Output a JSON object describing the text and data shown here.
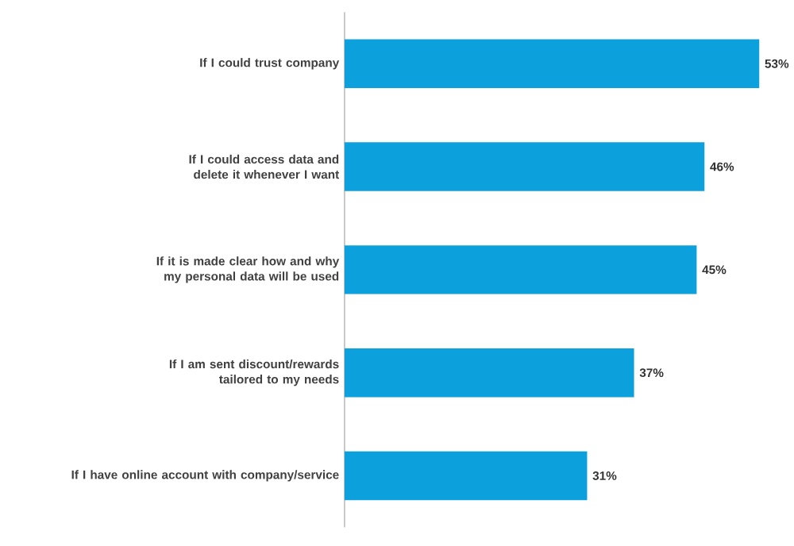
{
  "chart_data": {
    "type": "bar",
    "orientation": "horizontal",
    "categories": [
      "If I could trust company",
      "If I could access data and delete it whenever I want",
      "If it is made clear how and why my personal data will be used",
      "If I am sent discount/rewards tailored to my needs",
      "If I have online account with company/service"
    ],
    "values": [
      53,
      46,
      45,
      37,
      31
    ],
    "value_labels": [
      "53%",
      "46%",
      "45%",
      "37%",
      "31%"
    ],
    "color": "#0ca0dc"
  }
}
